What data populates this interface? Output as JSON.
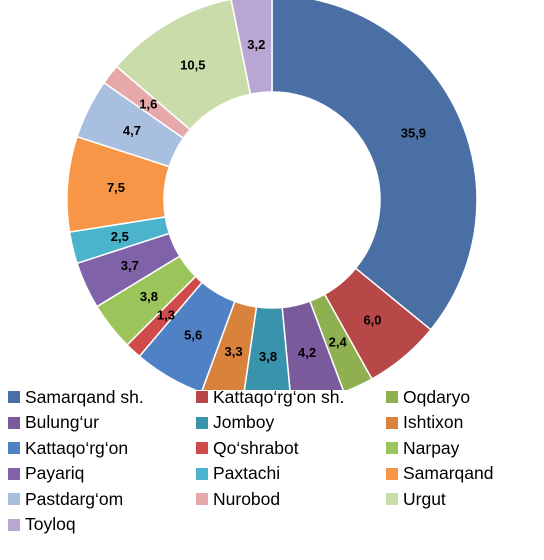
{
  "chart_data": {
    "type": "pie",
    "variant": "donut",
    "title": "",
    "series": [
      {
        "name": "Samarqand sh.",
        "value": 35.9,
        "label": "35,9",
        "color": "#4a6fa5"
      },
      {
        "name": "Kattaqo‘rg‘on sh.",
        "value": 6.0,
        "label": "6,0",
        "color": "#b84747"
      },
      {
        "name": "Oqdaryo",
        "value": 2.4,
        "label": "2,4",
        "color": "#8fb050"
      },
      {
        "name": "Bulung‘ur",
        "value": 4.2,
        "label": "4,2",
        "color": "#7a5a9a"
      },
      {
        "name": "Jomboy",
        "value": 3.8,
        "label": "3,8",
        "color": "#3a93ac"
      },
      {
        "name": "Ishtixon",
        "value": 3.3,
        "label": "3,3",
        "color": "#d9823b"
      },
      {
        "name": "Kattaqo‘rg‘on",
        "value": 5.6,
        "label": "5,6",
        "color": "#4f81c4"
      },
      {
        "name": "Qo‘shrabot",
        "value": 1.3,
        "label": "1,3",
        "color": "#cf4b4b"
      },
      {
        "name": "Narpay",
        "value": 3.8,
        "label": "3,8",
        "color": "#9bc45a"
      },
      {
        "name": "Payariq",
        "value": 3.7,
        "label": "3,7",
        "color": "#8062a8"
      },
      {
        "name": "Paxtachi",
        "value": 2.5,
        "label": "2,5",
        "color": "#4bb3cb"
      },
      {
        "name": "Samarqand",
        "value": 7.5,
        "label": "7,5",
        "color": "#f79646"
      },
      {
        "name": "Pastdarg‘om",
        "value": 4.7,
        "label": "4,7",
        "color": "#a9bfe0"
      },
      {
        "name": "Nurobod",
        "value": 1.6,
        "label": "1,6",
        "color": "#e6a8a8"
      },
      {
        "name": "Urgut",
        "value": 10.5,
        "label": "10,5",
        "color": "#c9dcaa"
      },
      {
        "name": "Toyloq",
        "value": 3.2,
        "label": "3,2",
        "color": "#b9a6d2"
      }
    ],
    "legend_position": "bottom"
  }
}
